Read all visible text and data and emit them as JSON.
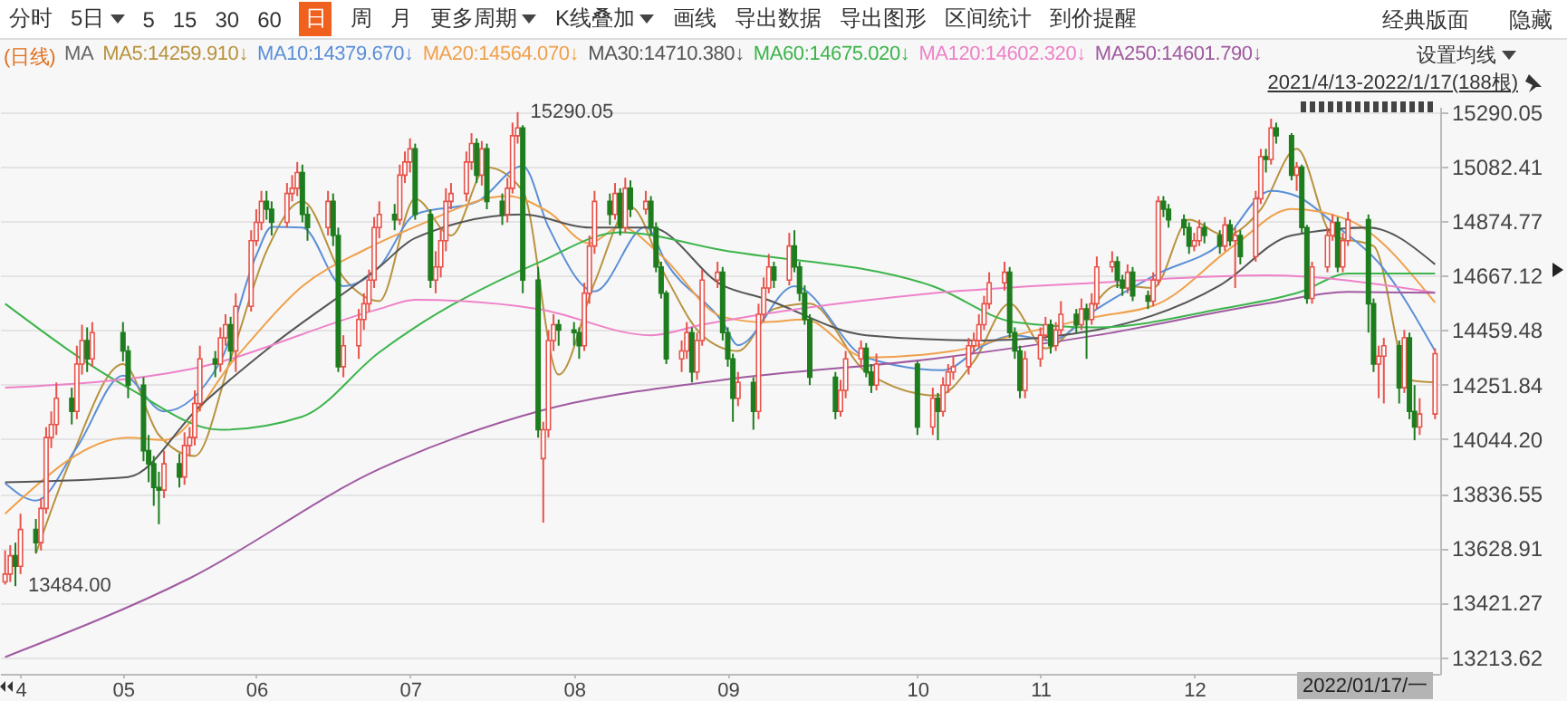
{
  "chart_data": {
    "type": "candlestick",
    "x": [
      "2021-04-13",
      "2021-04-14",
      "2021-04-15",
      "2021-04-16",
      "2021-04-19",
      "2021-04-20",
      "2021-04-21",
      "2021-04-22",
      "2021-04-23",
      "2021-04-26",
      "2021-04-27",
      "2021-04-28",
      "2021-04-29",
      "2021-04-30",
      "2021-05-06",
      "2021-05-07",
      "2021-05-10",
      "2021-05-11",
      "2021-05-12",
      "2021-05-13",
      "2021-05-14",
      "2021-05-17",
      "2021-05-18",
      "2021-05-19",
      "2021-05-20",
      "2021-05-21",
      "2021-05-24",
      "2021-05-25",
      "2021-05-26",
      "2021-05-27",
      "2021-05-28",
      "2021-05-31",
      "2021-06-01",
      "2021-06-02",
      "2021-06-03",
      "2021-06-04",
      "2021-06-07",
      "2021-06-08",
      "2021-06-09",
      "2021-06-10",
      "2021-06-11",
      "2021-06-15",
      "2021-06-16",
      "2021-06-17",
      "2021-06-18",
      "2021-06-21",
      "2021-06-22",
      "2021-06-23",
      "2021-06-24",
      "2021-06-25",
      "2021-06-28",
      "2021-06-29",
      "2021-06-30",
      "2021-07-01",
      "2021-07-02",
      "2021-07-05",
      "2021-07-06",
      "2021-07-07",
      "2021-07-08",
      "2021-07-09",
      "2021-07-12",
      "2021-07-13",
      "2021-07-14",
      "2021-07-15",
      "2021-07-16",
      "2021-07-19",
      "2021-07-20",
      "2021-07-21",
      "2021-07-22",
      "2021-07-23",
      "2021-07-26",
      "2021-07-27",
      "2021-07-28",
      "2021-07-29",
      "2021-07-30",
      "2021-08-02",
      "2021-08-03",
      "2021-08-04",
      "2021-08-05",
      "2021-08-06",
      "2021-08-09",
      "2021-08-10",
      "2021-08-11",
      "2021-08-12",
      "2021-08-13",
      "2021-08-16",
      "2021-08-17",
      "2021-08-18",
      "2021-08-19",
      "2021-08-20",
      "2021-08-23",
      "2021-08-24",
      "2021-08-25",
      "2021-08-26",
      "2021-08-27",
      "2021-08-30",
      "2021-08-31",
      "2021-09-01",
      "2021-09-02",
      "2021-09-03",
      "2021-09-06",
      "2021-09-07",
      "2021-09-08",
      "2021-09-09",
      "2021-09-10",
      "2021-09-13",
      "2021-09-14",
      "2021-09-15",
      "2021-09-16",
      "2021-09-17",
      "2021-09-22",
      "2021-09-23",
      "2021-09-24",
      "2021-09-27",
      "2021-09-28",
      "2021-09-29",
      "2021-09-30",
      "2021-10-08",
      "2021-10-11",
      "2021-10-12",
      "2021-10-13",
      "2021-10-14",
      "2021-10-15",
      "2021-10-18",
      "2021-10-19",
      "2021-10-20",
      "2021-10-21",
      "2021-10-22",
      "2021-10-25",
      "2021-10-26",
      "2021-10-27",
      "2021-10-28",
      "2021-10-29",
      "2021-11-01",
      "2021-11-02",
      "2021-11-03",
      "2021-11-04",
      "2021-11-05",
      "2021-11-08",
      "2021-11-09",
      "2021-11-10",
      "2021-11-11",
      "2021-11-12",
      "2021-11-15",
      "2021-11-16",
      "2021-11-17",
      "2021-11-18",
      "2021-11-19",
      "2021-11-22",
      "2021-11-23",
      "2021-11-24",
      "2021-11-25",
      "2021-11-26",
      "2021-11-29",
      "2021-11-30",
      "2021-12-01",
      "2021-12-02",
      "2021-12-03",
      "2021-12-06",
      "2021-12-07",
      "2021-12-08",
      "2021-12-09",
      "2021-12-10",
      "2021-12-13",
      "2021-12-14",
      "2021-12-15",
      "2021-12-16",
      "2021-12-17",
      "2021-12-20",
      "2021-12-21",
      "2021-12-22",
      "2021-12-23",
      "2021-12-24",
      "2021-12-27",
      "2021-12-28",
      "2021-12-29",
      "2021-12-30",
      "2021-12-31",
      "2022-01-04",
      "2022-01-05",
      "2022-01-06",
      "2022-01-07",
      "2022-01-10",
      "2022-01-11",
      "2022-01-12",
      "2022-01-13",
      "2022-01-14",
      "2022-01-17"
    ],
    "ohlc": [
      [
        13500,
        13620,
        13490,
        13530
      ],
      [
        13530,
        13640,
        13500,
        13600
      ],
      [
        13600,
        13650,
        13484,
        13560
      ],
      [
        13560,
        13760,
        13530,
        13700
      ],
      [
        13700,
        13740,
        13610,
        13650
      ],
      [
        13650,
        13820,
        13620,
        13780
      ],
      [
        13780,
        14090,
        13760,
        14050
      ],
      [
        14050,
        14150,
        14010,
        14100
      ],
      [
        14100,
        14260,
        14060,
        14200
      ],
      [
        14200,
        14240,
        14100,
        14150
      ],
      [
        14150,
        14400,
        14120,
        14330
      ],
      [
        14330,
        14480,
        14290,
        14420
      ],
      [
        14420,
        14470,
        14300,
        14350
      ],
      [
        14350,
        14490,
        14320,
        14450
      ],
      [
        14450,
        14490,
        14340,
        14380
      ],
      [
        14380,
        14400,
        14200,
        14250
      ],
      [
        14250,
        14280,
        13960,
        14000
      ],
      [
        14000,
        14060,
        13880,
        13950
      ],
      [
        13950,
        13980,
        13790,
        13860
      ],
      [
        13860,
        13920,
        13720,
        13850
      ],
      [
        13850,
        14000,
        13820,
        13950
      ],
      [
        13950,
        13990,
        13860,
        13900
      ],
      [
        13900,
        14070,
        13870,
        14020
      ],
      [
        14020,
        14090,
        13980,
        14050
      ],
      [
        14050,
        14230,
        14020,
        14180
      ],
      [
        14180,
        14400,
        14150,
        14350
      ],
      [
        14350,
        14380,
        14280,
        14330
      ],
      [
        14330,
        14470,
        14300,
        14430
      ],
      [
        14430,
        14520,
        14400,
        14480
      ],
      [
        14480,
        14510,
        14340,
        14380
      ],
      [
        14380,
        14600,
        14300,
        14550
      ],
      [
        14550,
        14840,
        14530,
        14800
      ],
      [
        14800,
        14920,
        14780,
        14870
      ],
      [
        14870,
        14990,
        14840,
        14950
      ],
      [
        14950,
        14990,
        14880,
        14920
      ],
      [
        14920,
        14950,
        14820,
        14870
      ],
      [
        14870,
        15020,
        14850,
        14980
      ],
      [
        14980,
        15050,
        14950,
        15000
      ],
      [
        15000,
        15100,
        14970,
        15060
      ],
      [
        15060,
        15090,
        14870,
        14900
      ],
      [
        14900,
        14930,
        14800,
        14850
      ],
      [
        14850,
        14990,
        14820,
        14950
      ],
      [
        14950,
        14980,
        14780,
        14820
      ],
      [
        14820,
        14850,
        14300,
        14320
      ],
      [
        14320,
        14440,
        14280,
        14400
      ],
      [
        14400,
        14540,
        14350,
        14500
      ],
      [
        14500,
        14600,
        14460,
        14560
      ],
      [
        14560,
        14690,
        14530,
        14650
      ],
      [
        14650,
        14890,
        14620,
        14850
      ],
      [
        14850,
        14950,
        14810,
        14900
      ],
      [
        14900,
        14940,
        14840,
        14880
      ],
      [
        14880,
        15090,
        14860,
        15050
      ],
      [
        15050,
        15140,
        15020,
        15100
      ],
      [
        15100,
        15190,
        15060,
        15150
      ],
      [
        15150,
        15170,
        14880,
        14900
      ],
      [
        14900,
        14920,
        14620,
        14650
      ],
      [
        14650,
        14760,
        14600,
        14700
      ],
      [
        14700,
        14850,
        14660,
        14800
      ],
      [
        14800,
        15000,
        14760,
        14950
      ],
      [
        14950,
        15020,
        14920,
        14980
      ],
      [
        14980,
        15140,
        14950,
        15100
      ],
      [
        15100,
        15210,
        15070,
        15170
      ],
      [
        15170,
        15190,
        15020,
        15050
      ],
      [
        15050,
        15180,
        15010,
        15150
      ],
      [
        15150,
        15170,
        14920,
        14950
      ],
      [
        14950,
        14980,
        14860,
        14900
      ],
      [
        14900,
        15040,
        14870,
        15000
      ],
      [
        15000,
        15250,
        14980,
        15200
      ],
      [
        15200,
        15290.05,
        15170,
        15230
      ],
      [
        15230,
        15240,
        14600,
        14650
      ],
      [
        14650,
        14700,
        14050,
        14080
      ],
      [
        13970,
        14110,
        13726,
        14080
      ],
      [
        14080,
        14460,
        14050,
        14420
      ],
      [
        14420,
        14520,
        14380,
        14480
      ],
      [
        14480,
        14500,
        14400,
        14460
      ],
      [
        14460,
        14490,
        14400,
        14450
      ],
      [
        14450,
        14470,
        14350,
        14400
      ],
      [
        14400,
        14640,
        14380,
        14600
      ],
      [
        14600,
        14820,
        14560,
        14780
      ],
      [
        14780,
        14990,
        14750,
        14950
      ],
      [
        14950,
        14980,
        14860,
        14900
      ],
      [
        14900,
        15020,
        14880,
        14980
      ],
      [
        14980,
        15000,
        14820,
        14850
      ],
      [
        14850,
        15040,
        14830,
        15000
      ],
      [
        15000,
        15030,
        14890,
        14920
      ],
      [
        14920,
        14990,
        14900,
        14950
      ],
      [
        14950,
        14970,
        14820,
        14850
      ],
      [
        14850,
        14870,
        14680,
        14700
      ],
      [
        14700,
        14720,
        14580,
        14600
      ],
      [
        14600,
        14610,
        14330,
        14350
      ],
      [
        14350,
        14420,
        14300,
        14380
      ],
      [
        14380,
        14490,
        14350,
        14450
      ],
      [
        14450,
        14470,
        14260,
        14300
      ],
      [
        14300,
        14450,
        14270,
        14420
      ],
      [
        14420,
        14690,
        14400,
        14650
      ],
      [
        14650,
        14720,
        14620,
        14680
      ],
      [
        14680,
        14700,
        14420,
        14450
      ],
      [
        14450,
        14470,
        14320,
        14350
      ],
      [
        14350,
        14370,
        14110,
        14200
      ],
      [
        14200,
        14300,
        14170,
        14260
      ],
      [
        14260,
        14280,
        14080,
        14150
      ],
      [
        14150,
        14560,
        14120,
        14520
      ],
      [
        14520,
        14660,
        14490,
        14620
      ],
      [
        14620,
        14750,
        14600,
        14700
      ],
      [
        14700,
        14720,
        14620,
        14650
      ],
      [
        14650,
        14830,
        14630,
        14780
      ],
      [
        14780,
        14840,
        14680,
        14700
      ],
      [
        14700,
        14720,
        14570,
        14600
      ],
      [
        14600,
        14630,
        14480,
        14500
      ],
      [
        14500,
        14520,
        14250,
        14280
      ],
      [
        14280,
        14300,
        14120,
        14150
      ],
      [
        14150,
        14270,
        14130,
        14230
      ],
      [
        14230,
        14380,
        14200,
        14350
      ],
      [
        14350,
        14420,
        14320,
        14390
      ],
      [
        14390,
        14410,
        14280,
        14300
      ],
      [
        14300,
        14330,
        14220,
        14250
      ],
      [
        14250,
        14370,
        14230,
        14330
      ],
      [
        14330,
        14340,
        14060,
        14090
      ],
      [
        14090,
        14240,
        14060,
        14200
      ],
      [
        14200,
        14220,
        14040,
        14150
      ],
      [
        14150,
        14280,
        14130,
        14250
      ],
      [
        14250,
        14330,
        14220,
        14300
      ],
      [
        14300,
        14360,
        14270,
        14320
      ],
      [
        14320,
        14430,
        14290,
        14400
      ],
      [
        14400,
        14450,
        14370,
        14420
      ],
      [
        14420,
        14520,
        14390,
        14480
      ],
      [
        14480,
        14590,
        14460,
        14560
      ],
      [
        14560,
        14680,
        14540,
        14640
      ],
      [
        14640,
        14720,
        14610,
        14680
      ],
      [
        14680,
        14700,
        14430,
        14450
      ],
      [
        14450,
        14470,
        14350,
        14380
      ],
      [
        14380,
        14400,
        14200,
        14230
      ],
      [
        14230,
        14380,
        14200,
        14350
      ],
      [
        14350,
        14470,
        14320,
        14440
      ],
      [
        14440,
        14510,
        14420,
        14480
      ],
      [
        14480,
        14500,
        14370,
        14400
      ],
      [
        14400,
        14490,
        14380,
        14460
      ],
      [
        14460,
        14570,
        14440,
        14520
      ],
      [
        14520,
        14540,
        14450,
        14480
      ],
      [
        14480,
        14580,
        14460,
        14540
      ],
      [
        14540,
        14560,
        14350,
        14500
      ],
      [
        14500,
        14600,
        14480,
        14560
      ],
      [
        14560,
        14740,
        14540,
        14700
      ],
      [
        14700,
        14760,
        14680,
        14720
      ],
      [
        14720,
        14740,
        14620,
        14650
      ],
      [
        14650,
        14670,
        14590,
        14620
      ],
      [
        14620,
        14710,
        14600,
        14680
      ],
      [
        14680,
        14700,
        14570,
        14590
      ],
      [
        14590,
        14610,
        14540,
        14570
      ],
      [
        14570,
        14680,
        14550,
        14650
      ],
      [
        14650,
        14970,
        14630,
        14950
      ],
      [
        14950,
        14970,
        14890,
        14920
      ],
      [
        14920,
        14940,
        14850,
        14880
      ],
      [
        14880,
        14900,
        14820,
        14850
      ],
      [
        14850,
        14870,
        14750,
        14780
      ],
      [
        14780,
        14830,
        14760,
        14800
      ],
      [
        14800,
        14880,
        14780,
        14850
      ],
      [
        14850,
        14870,
        14790,
        14820
      ],
      [
        14820,
        14840,
        14750,
        14780
      ],
      [
        14780,
        14890,
        14760,
        14860
      ],
      [
        14860,
        14880,
        14780,
        14800
      ],
      [
        14800,
        14850,
        14620,
        14820
      ],
      [
        14820,
        14840,
        14710,
        14740
      ],
      [
        14740,
        14990,
        14720,
        14960
      ],
      [
        14960,
        15150,
        14940,
        15120
      ],
      [
        15120,
        15150,
        15060,
        15110
      ],
      [
        15110,
        15265,
        15090,
        15230
      ],
      [
        15230,
        15250,
        15170,
        15200
      ],
      [
        15200,
        15210,
        15030,
        15050
      ],
      [
        15050,
        15100,
        14990,
        15080
      ],
      [
        15080,
        15090,
        14830,
        14850
      ],
      [
        14850,
        14860,
        14560,
        14580
      ],
      [
        14580,
        14720,
        14560,
        14700
      ],
      [
        14700,
        14850,
        14680,
        14820
      ],
      [
        14820,
        14900,
        14800,
        14870
      ],
      [
        14870,
        14890,
        14680,
        14700
      ],
      [
        14700,
        14830,
        14680,
        14800
      ],
      [
        14800,
        14910,
        14780,
        14880
      ],
      [
        14880,
        14900,
        14450,
        14560
      ],
      [
        14560,
        14580,
        14300,
        14330
      ],
      [
        14330,
        14400,
        14200,
        14360
      ],
      [
        14360,
        14430,
        14180,
        14400
      ],
      [
        14400,
        14420,
        14180,
        14240
      ],
      [
        14240,
        14460,
        14220,
        14430
      ],
      [
        14430,
        14450,
        14120,
        14150
      ],
      [
        14150,
        14250,
        14040,
        14090
      ],
      [
        14090,
        14200,
        14060,
        14140
      ],
      [
        14140,
        14390,
        14120,
        14370
      ]
    ],
    "series": [
      {
        "name": "MA5:14259.910↓",
        "color": "#b8923e",
        "type": "line",
        "x": [
          "2021-04-19",
          "2021-04-26",
          "2021-05-06",
          "2021-05-13",
          "2021-05-20",
          "2021-05-27",
          "2021-06-03",
          "2021-06-10",
          "2021-06-18",
          "2021-06-25",
          "2021-07-02",
          "2021-07-09",
          "2021-07-16",
          "2021-07-23",
          "2021-07-30",
          "2021-08-06",
          "2021-08-13",
          "2021-08-20",
          "2021-08-27",
          "2021-09-03",
          "2021-09-10",
          "2021-09-17",
          "2021-09-28",
          "2021-10-12",
          "2021-10-19",
          "2021-10-26",
          "2021-11-02",
          "2021-11-09",
          "2021-11-16",
          "2021-11-23",
          "2021-11-30",
          "2021-12-07",
          "2021-12-14",
          "2021-12-21",
          "2021-12-28",
          "2022-01-05",
          "2022-01-12",
          "2022-01-17"
        ],
        "values": [
          13608,
          13976,
          14330,
          14060,
          13980,
          14350,
          14760,
          14950,
          14660,
          14570,
          14960,
          14820,
          15080,
          14990,
          14290,
          14640,
          14930,
          14660,
          14440,
          14380,
          14540,
          14560,
          14300,
          14210,
          14340,
          14560,
          14390,
          14500,
          14630,
          14620,
          14880,
          14820,
          14920,
          15150,
          14820,
          14780,
          14270,
          14260
        ]
      },
      {
        "name": "MA10:14379.670↓",
        "color": "#5b8fd6",
        "type": "line",
        "x": [
          "2021-04-13",
          "2021-04-19",
          "2021-04-27",
          "2021-05-06",
          "2021-05-14",
          "2021-05-25",
          "2021-06-01",
          "2021-06-04",
          "2021-06-10",
          "2021-06-18",
          "2021-06-25",
          "2021-07-02",
          "2021-07-14",
          "2021-07-23",
          "2021-07-28",
          "2021-08-06",
          "2021-08-16",
          "2021-08-20",
          "2021-08-31",
          "2021-09-03",
          "2021-09-14",
          "2021-09-28",
          "2021-10-13",
          "2021-10-21",
          "2021-10-27",
          "2021-11-03",
          "2021-11-12",
          "2021-11-24",
          "2021-12-06",
          "2021-12-16",
          "2021-12-21",
          "2021-12-29",
          "2022-01-06",
          "2022-01-17"
        ],
        "values": [
          13876,
          13810,
          14013,
          14286,
          14150,
          14340,
          14744,
          14853,
          14850,
          14627,
          14700,
          14900,
          14948,
          15085,
          14853,
          14607,
          14853,
          14716,
          14490,
          14402,
          14627,
          14355,
          14307,
          14402,
          14440,
          14420,
          14540,
          14675,
          14785,
          14990,
          14970,
          14853,
          14716,
          14380
        ]
      },
      {
        "name": "MA20:14564.070↓",
        "color": "#f0a04b",
        "type": "line",
        "x": [
          "2021-04-13",
          "2021-05-07",
          "2021-05-14",
          "2021-05-28",
          "2021-06-10",
          "2021-06-22",
          "2021-07-02",
          "2021-07-20",
          "2021-07-28",
          "2021-08-05",
          "2021-08-11",
          "2021-08-19",
          "2021-08-31",
          "2021-09-08",
          "2021-09-16",
          "2021-09-28",
          "2021-10-15",
          "2021-10-27",
          "2021-11-12",
          "2021-11-24",
          "2021-12-09",
          "2021-12-20",
          "2021-12-31",
          "2022-01-17"
        ],
        "values": [
          13760,
          14050,
          14040,
          14355,
          14627,
          14764,
          14853,
          14970,
          14910,
          14790,
          14853,
          14744,
          14510,
          14490,
          14500,
          14355,
          14380,
          14440,
          14510,
          14560,
          14785,
          14921,
          14880,
          14564
        ]
      },
      {
        "name": "MA30:14710.380↓",
        "color": "#555555",
        "type": "line",
        "x": [
          "2021-04-13",
          "2021-05-07",
          "2021-05-21",
          "2021-06-04",
          "2021-06-25",
          "2021-07-02",
          "2021-07-23",
          "2021-08-05",
          "2021-08-17",
          "2021-08-31",
          "2021-09-08",
          "2021-09-28",
          "2021-10-21",
          "2021-11-12",
          "2021-12-06",
          "2021-12-20",
          "2022-01-04",
          "2022-01-17"
        ],
        "values": [
          13880,
          13900,
          14170,
          14400,
          14700,
          14810,
          14900,
          14850,
          14850,
          14630,
          14580,
          14440,
          14420,
          14460,
          14630,
          14820,
          14850,
          14710
        ]
      },
      {
        "name": "MA60:14675.020↓",
        "color": "#3cb44b",
        "type": "line",
        "x": [
          "2021-04-13",
          "2021-05-07",
          "2021-05-25",
          "2021-06-10",
          "2021-06-25",
          "2021-07-02",
          "2021-07-26",
          "2021-08-11",
          "2021-08-31",
          "2021-10-11",
          "2021-10-27",
          "2021-11-12",
          "2021-12-06",
          "2021-12-22",
          "2021-12-31",
          "2022-01-17"
        ],
        "values": [
          14560,
          14240,
          14080,
          14130,
          14375,
          14470,
          14716,
          14832,
          14764,
          14627,
          14490,
          14470,
          14540,
          14607,
          14675,
          14675
        ]
      },
      {
        "name": "MA120:14602.320↓",
        "color": "#ee82c8",
        "type": "line",
        "x": [
          "2021-04-13",
          "2021-05-19",
          "2021-06-25",
          "2021-07-02",
          "2021-07-26",
          "2021-08-17",
          "2021-08-27",
          "2021-10-11",
          "2021-11-12",
          "2021-12-15",
          "2022-01-17"
        ],
        "values": [
          14240,
          14310,
          14540,
          14575,
          14540,
          14440,
          14480,
          14600,
          14640,
          14668,
          14602
        ]
      },
      {
        "name": "MA250:14601.790↓",
        "color": "#a05aa0",
        "type": "line",
        "x": [
          "2021-04-13",
          "2021-05-19",
          "2021-06-25",
          "2021-07-26",
          "2021-08-31",
          "2021-10-11",
          "2021-11-12",
          "2021-12-15",
          "2021-12-31",
          "2022-01-17"
        ],
        "values": [
          13214,
          13514,
          13930,
          14150,
          14270,
          14350,
          14440,
          14560,
          14605,
          14602
        ]
      }
    ],
    "xlim": [
      "2021-04-12",
      "2022-01-18"
    ],
    "ylim": [
      13150,
      15310
    ],
    "yticks": [
      13213.62,
      13421.27,
      13628.91,
      13836.55,
      {
        "value": 14044.2,
        "label": "14044.20"
      },
      14251.84,
      14459.48,
      14667.12,
      14874.77,
      15082.41,
      15290.05
    ],
    "xticks": [
      {
        "value": "2021-04-16",
        "label": "4"
      },
      {
        "value": "2021-05-06",
        "label": "05"
      },
      {
        "value": "2021-06-01",
        "label": "06"
      },
      {
        "value": "2021-07-01",
        "label": "07"
      },
      {
        "value": "2021-08-02",
        "label": "08"
      },
      {
        "value": "2021-09-01",
        "label": "09"
      },
      {
        "value": "2021-10-08",
        "label": "10"
      },
      {
        "value": "2021-11-01",
        "label": "11"
      },
      {
        "value": "2021-12-01",
        "label": "12"
      }
    ],
    "grid": "y",
    "legend": "top",
    "annotations": [
      "分时",
      "5日",
      "5",
      "15",
      "30",
      "60",
      "日",
      "周",
      "月",
      "更多周期",
      "K线叠加",
      "画线",
      "导出数据",
      "导出图形",
      "区间统计",
      "到价提醒",
      "经典版面",
      "隐藏",
      "(日线)",
      "MA",
      "设置均线",
      "2021/4/13-2022/1/17(188根)",
      "2022/01/17/一",
      {
        "text": "15290.05",
        "x": "2021-07-22",
        "y": 15290.05
      },
      {
        "text": "13484.00",
        "x": "2021-04-15",
        "y": 13484
      }
    ]
  }
}
